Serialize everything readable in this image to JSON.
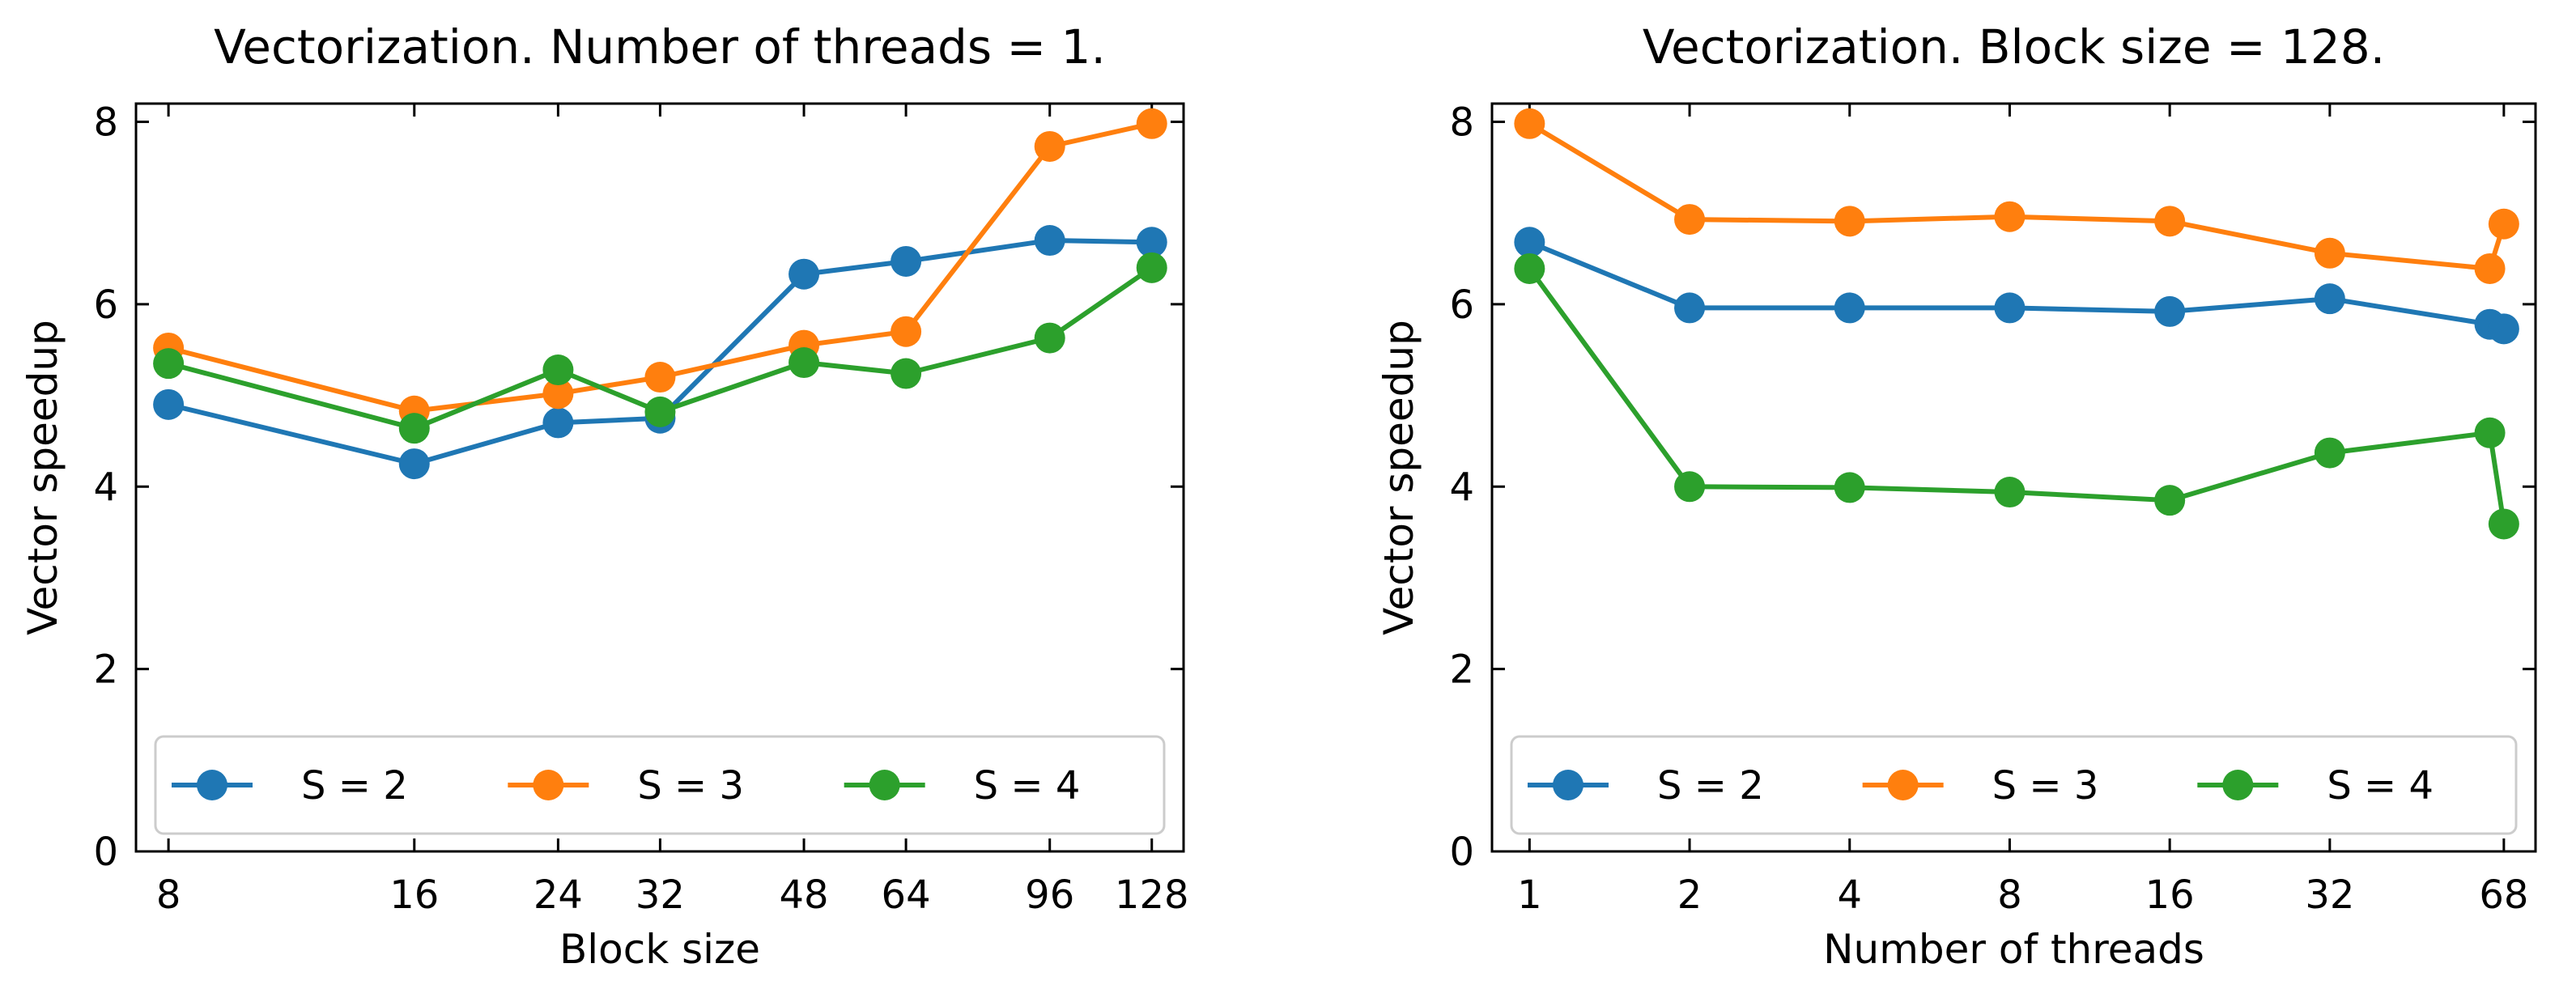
{
  "chart_data": [
    {
      "type": "line",
      "title": "Vectorization. Number of threads = 1.",
      "xlabel": "Block size",
      "ylabel": "Vector speedup",
      "xscale": "log2",
      "categories": [
        "8",
        "16",
        "24",
        "32",
        "48",
        "64",
        "96",
        "128"
      ],
      "x": [
        8,
        16,
        24,
        32,
        48,
        64,
        96,
        128
      ],
      "xlim": [
        7.3,
        140
      ],
      "ylim": [
        0,
        8.2
      ],
      "yticks": [
        0,
        2,
        4,
        6,
        8
      ],
      "legend": "bottom",
      "series": [
        {
          "name": "S = 2",
          "color": "#1f77b4",
          "values": [
            4.9,
            4.25,
            4.7,
            4.75,
            6.33,
            6.47,
            6.7,
            6.68
          ]
        },
        {
          "name": "S = 3",
          "color": "#ff7f0e",
          "values": [
            5.52,
            4.83,
            5.02,
            5.2,
            5.55,
            5.7,
            7.73,
            7.98
          ]
        },
        {
          "name": "S = 4",
          "color": "#2ca02c",
          "values": [
            5.35,
            4.64,
            5.28,
            4.82,
            5.36,
            5.24,
            5.63,
            6.4
          ]
        }
      ]
    },
    {
      "type": "line",
      "title": "Vectorization. Block size = 128.",
      "xlabel": "Number of threads",
      "ylabel": "Vector speedup",
      "xscale": "log2",
      "categories": [
        "1",
        "2",
        "4",
        "8",
        "16",
        "32",
        "68"
      ],
      "x": [
        1,
        2,
        4,
        8,
        16,
        32,
        64,
        68
      ],
      "xtick_values": [
        1,
        2,
        4,
        8,
        16,
        32,
        68
      ],
      "xlim": [
        0.85,
        78
      ],
      "ylim": [
        0,
        8.2
      ],
      "yticks": [
        0,
        2,
        4,
        6,
        8
      ],
      "legend": "bottom",
      "series": [
        {
          "name": "S = 2",
          "color": "#1f77b4",
          "values": [
            6.68,
            5.96,
            5.96,
            5.96,
            5.92,
            6.06,
            5.78,
            5.73
          ]
        },
        {
          "name": "S = 3",
          "color": "#ff7f0e",
          "values": [
            7.98,
            6.93,
            6.91,
            6.96,
            6.91,
            6.56,
            6.39,
            6.88
          ]
        },
        {
          "name": "S = 4",
          "color": "#2ca02c",
          "values": [
            6.39,
            4.0,
            3.99,
            3.94,
            3.85,
            4.37,
            4.59,
            3.59
          ]
        }
      ]
    }
  ]
}
